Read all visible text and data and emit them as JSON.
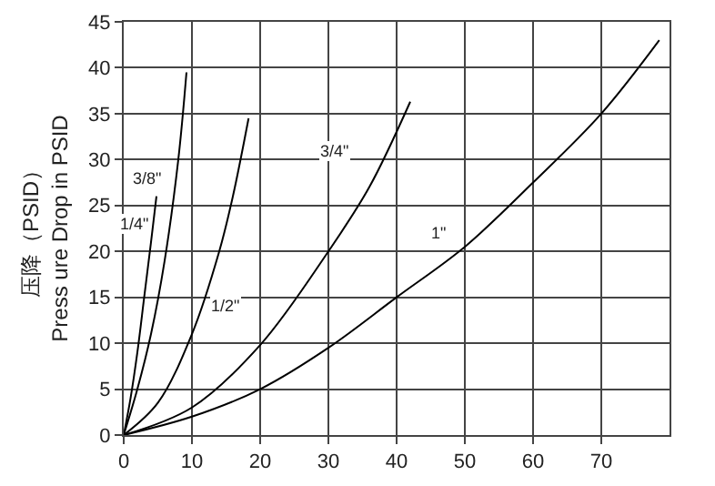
{
  "chart_data": {
    "type": "line",
    "ylabel": "压降（PSID）\nPress ure Drop in PSID",
    "xlim": [
      0,
      80
    ],
    "xticks": [
      0,
      10,
      20,
      30,
      40,
      50,
      60,
      70
    ],
    "ylim": [
      0,
      45
    ],
    "yticks": [
      0,
      5,
      10,
      15,
      20,
      25,
      30,
      35,
      40,
      45
    ],
    "grid": true,
    "marker": "none",
    "line_style": "solid",
    "series": [
      {
        "color": "#000000",
        "x": [
          0,
          1,
          2,
          3,
          4,
          4.8
        ],
        "values": [
          0,
          4,
          9,
          15,
          21,
          26
        ]
      },
      {
        "color": "#000000",
        "x": [
          0,
          2,
          4,
          6,
          8,
          9.2
        ],
        "values": [
          0,
          5,
          11,
          19,
          30,
          39.5
        ]
      },
      {
        "color": "#000000",
        "x": [
          0,
          5,
          10,
          14,
          16,
          18.3
        ],
        "values": [
          0,
          3.5,
          11,
          20,
          26,
          34.5
        ]
      },
      {
        "color": "#000000",
        "x": [
          0,
          10,
          20,
          30,
          36,
          42
        ],
        "values": [
          0,
          3,
          9.8,
          20,
          27,
          36.3
        ]
      },
      {
        "color": "#000000",
        "x": [
          0,
          10,
          20,
          30,
          40,
          50,
          60,
          70,
          78.5
        ],
        "values": [
          0,
          2,
          5,
          9.5,
          15,
          20.5,
          27.5,
          35,
          43
        ]
      }
    ],
    "annotations": [
      {
        "text": "1/4\"",
        "x": 1.5,
        "y": 23
      },
      {
        "text": "3/8\"",
        "x": 3.5,
        "y": 28
      },
      {
        "text": "1/2\"",
        "x": 15,
        "y": 14
      },
      {
        "text": "3/4\"",
        "x": 31,
        "y": 31
      },
      {
        "text": "1\"",
        "x": 46,
        "y": 22
      }
    ]
  }
}
